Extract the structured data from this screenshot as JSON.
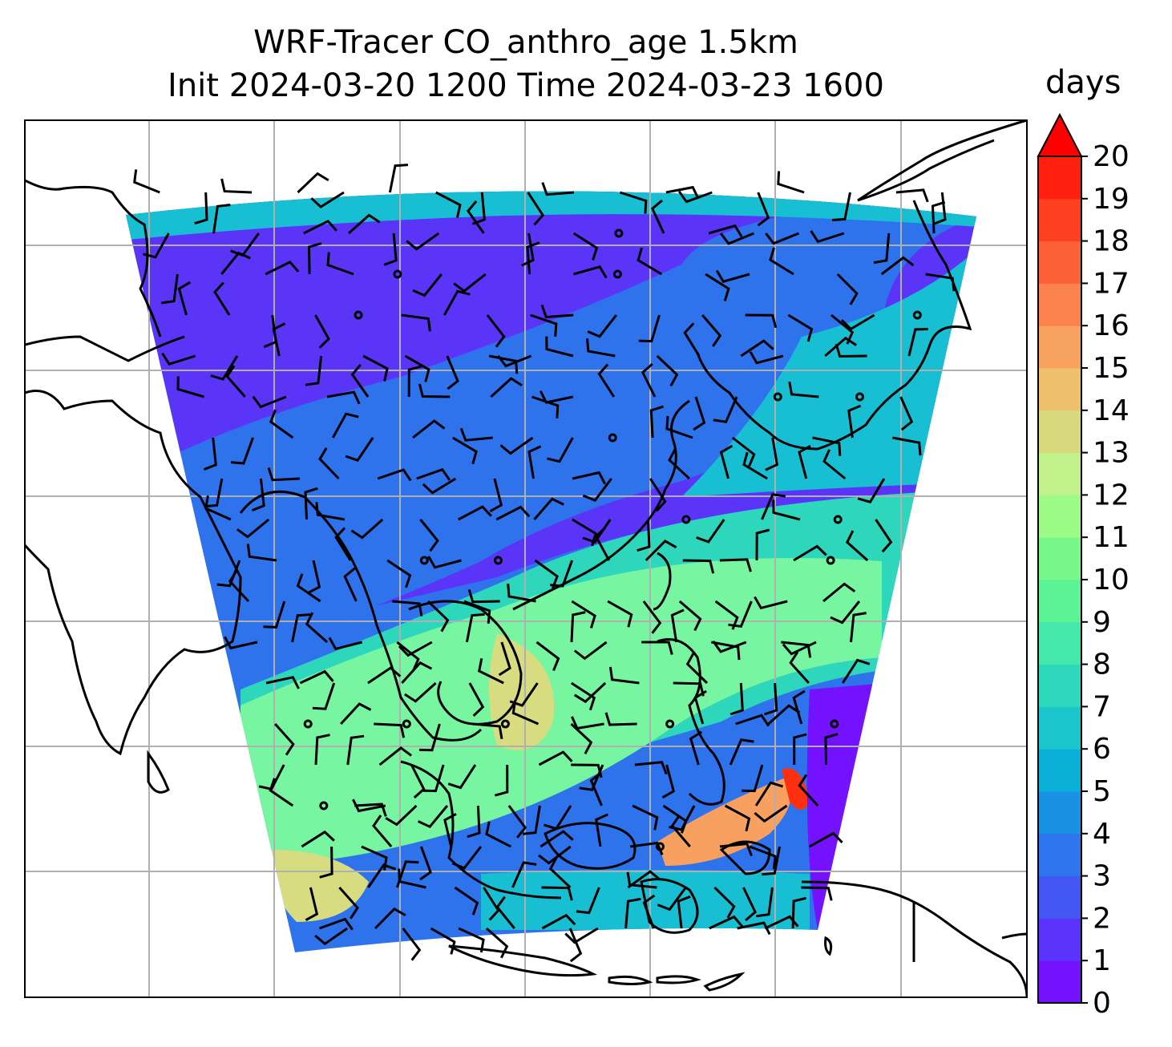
{
  "title": {
    "line1": "WRF-Tracer CO_anthro_age 1.5km",
    "line2": "Init 2024-03-20 1200 Time 2024-03-23 1600"
  },
  "colorbar": {
    "label": "days",
    "extend": "max",
    "ticks": [
      "0",
      "1",
      "2",
      "3",
      "4",
      "5",
      "6",
      "7",
      "8",
      "9",
      "10",
      "11",
      "12",
      "13",
      "14",
      "15",
      "16",
      "17",
      "18",
      "19",
      "20"
    ],
    "colors": [
      "#7412ff",
      "#5b34fc",
      "#4457f5",
      "#2e75ee",
      "#1a92e4",
      "#0bb0d9",
      "#1ac6cc",
      "#2ed8bc",
      "#44e8aa",
      "#5cf296",
      "#78f88a",
      "#9cfa86",
      "#c2f08a",
      "#d8d87c",
      "#efc06e",
      "#f7a25e",
      "#fb824c",
      "#fc6036",
      "#fe4020",
      "#ff200f"
    ],
    "extend_color": "#ff0000"
  },
  "map": {
    "field_colors": {
      "north": "#5a35f8",
      "blue": "#2e72ec",
      "cyan": "#18bfd2",
      "teal": "#2ed6bc",
      "green": "#78f5a0",
      "yellow": "#d8dc80",
      "orange": "#f7a060",
      "red": "#ff3010",
      "deep": "#7412ff"
    },
    "gridlines": "on",
    "wind_barbs": "on",
    "coastlines": "on"
  }
}
